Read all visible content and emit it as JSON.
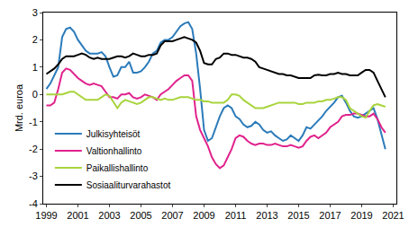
{
  "chart_data": {
    "type": "line",
    "y_label": "Mrd. euroa",
    "x": [
      1999.0,
      1999.25,
      1999.5,
      1999.75,
      2000.0,
      2000.25,
      2000.5,
      2000.75,
      2001.0,
      2001.25,
      2001.5,
      2001.75,
      2002.0,
      2002.25,
      2002.5,
      2002.75,
      2003.0,
      2003.25,
      2003.5,
      2003.75,
      2004.0,
      2004.25,
      2004.5,
      2004.75,
      2005.0,
      2005.25,
      2005.5,
      2005.75,
      2006.0,
      2006.25,
      2006.5,
      2006.75,
      2007.0,
      2007.25,
      2007.5,
      2007.75,
      2008.0,
      2008.25,
      2008.5,
      2008.75,
      2009.0,
      2009.25,
      2009.5,
      2009.75,
      2010.0,
      2010.25,
      2010.5,
      2010.75,
      2011.0,
      2011.25,
      2011.5,
      2011.75,
      2012.0,
      2012.25,
      2012.5,
      2012.75,
      2013.0,
      2013.25,
      2013.5,
      2013.75,
      2014.0,
      2014.25,
      2014.5,
      2014.75,
      2015.0,
      2015.25,
      2015.5,
      2015.75,
      2016.0,
      2016.25,
      2016.5,
      2016.75,
      2017.0,
      2017.25,
      2017.5,
      2017.75,
      2018.0,
      2018.25,
      2018.5,
      2018.75,
      2019.0,
      2019.25,
      2019.5,
      2019.75,
      2020.0,
      2020.25,
      2020.5
    ],
    "series": [
      {
        "name": "Julkisyhteisöt",
        "color": "#2b7bba",
        "values": [
          0.2,
          0.4,
          0.7,
          1.0,
          2.1,
          2.4,
          2.45,
          2.3,
          2.0,
          1.8,
          1.6,
          1.5,
          1.5,
          1.5,
          1.55,
          1.4,
          1.0,
          0.65,
          0.7,
          1.0,
          1.0,
          1.2,
          0.8,
          0.8,
          0.85,
          1.0,
          1.2,
          1.5,
          1.6,
          1.9,
          2.0,
          2.0,
          2.1,
          2.3,
          2.5,
          2.6,
          2.65,
          2.4,
          1.5,
          0.2,
          -1.3,
          -1.7,
          -1.6,
          -1.2,
          -0.8,
          -0.5,
          -0.4,
          -0.5,
          -0.8,
          -0.9,
          -1.1,
          -1.2,
          -1.15,
          -1.0,
          -1.1,
          -1.3,
          -1.4,
          -1.35,
          -1.5,
          -1.6,
          -1.7,
          -1.65,
          -1.5,
          -1.6,
          -1.7,
          -1.5,
          -1.2,
          -1.25,
          -1.1,
          -0.95,
          -0.8,
          -0.6,
          -0.45,
          -0.3,
          -0.1,
          -0.05,
          -0.3,
          -0.6,
          -0.8,
          -0.85,
          -0.8,
          -0.7,
          -0.6,
          -0.5,
          -0.9,
          -1.5,
          -2.0
        ]
      },
      {
        "name": "Valtionhallinto",
        "color": "#e0238c",
        "values": [
          -0.4,
          -0.4,
          -0.3,
          0.2,
          0.8,
          0.95,
          0.9,
          0.75,
          0.6,
          0.5,
          0.4,
          0.35,
          0.4,
          0.35,
          0.3,
          0.1,
          -0.1,
          -0.1,
          -0.15,
          0.0,
          0.0,
          0.05,
          -0.1,
          -0.15,
          -0.1,
          0.0,
          -0.05,
          -0.1,
          -0.2,
          0.0,
          0.1,
          0.2,
          0.35,
          0.5,
          0.6,
          0.7,
          0.7,
          0.5,
          -0.8,
          -1.3,
          -1.6,
          -1.9,
          -2.3,
          -2.55,
          -2.7,
          -2.6,
          -2.3,
          -2.0,
          -1.6,
          -1.5,
          -1.55,
          -1.7,
          -1.8,
          -1.85,
          -1.8,
          -1.8,
          -1.85,
          -1.85,
          -1.8,
          -1.85,
          -1.9,
          -1.9,
          -1.85,
          -1.9,
          -1.95,
          -1.9,
          -1.7,
          -1.55,
          -1.5,
          -1.6,
          -1.5,
          -1.4,
          -1.2,
          -1.1,
          -1.0,
          -0.8,
          -0.75,
          -0.75,
          -0.7,
          -0.7,
          -0.75,
          -0.8,
          -0.8,
          -0.7,
          -0.9,
          -1.2,
          -1.4
        ]
      },
      {
        "name": "Paikallishallinto",
        "color": "#a8d43c",
        "values": [
          0.0,
          0.0,
          0.0,
          0.0,
          0.0,
          0.05,
          0.1,
          0.1,
          0.0,
          -0.1,
          -0.2,
          -0.2,
          -0.2,
          -0.2,
          -0.1,
          0.0,
          -0.05,
          -0.3,
          -0.5,
          -0.3,
          -0.2,
          -0.25,
          -0.3,
          -0.35,
          -0.3,
          -0.2,
          -0.1,
          -0.1,
          -0.15,
          -0.2,
          -0.15,
          -0.2,
          -0.2,
          -0.15,
          -0.1,
          -0.1,
          -0.1,
          -0.15,
          -0.2,
          -0.2,
          -0.25,
          -0.25,
          -0.3,
          -0.3,
          -0.3,
          -0.3,
          -0.2,
          0.0,
          0.0,
          -0.05,
          -0.2,
          -0.3,
          -0.4,
          -0.5,
          -0.5,
          -0.5,
          -0.45,
          -0.4,
          -0.35,
          -0.3,
          -0.3,
          -0.3,
          -0.3,
          -0.3,
          -0.35,
          -0.35,
          -0.3,
          -0.3,
          -0.3,
          -0.25,
          -0.25,
          -0.2,
          -0.2,
          -0.15,
          -0.1,
          -0.1,
          -0.2,
          -0.5,
          -0.6,
          -0.7,
          -0.8,
          -0.85,
          -0.6,
          -0.4,
          -0.35,
          -0.4,
          -0.45
        ]
      },
      {
        "name": "Sosiaaliturvarahastot",
        "color": "#000000",
        "values": [
          0.75,
          0.85,
          0.95,
          1.1,
          1.3,
          1.4,
          1.4,
          1.4,
          1.45,
          1.5,
          1.45,
          1.35,
          1.3,
          1.35,
          1.3,
          1.3,
          1.3,
          1.35,
          1.4,
          1.4,
          1.35,
          1.4,
          1.5,
          1.45,
          1.4,
          1.4,
          1.45,
          1.45,
          1.5,
          1.8,
          1.95,
          1.95,
          1.95,
          2.0,
          2.05,
          2.1,
          2.05,
          2.0,
          1.9,
          1.6,
          1.15,
          1.1,
          1.1,
          1.3,
          1.35,
          1.5,
          1.5,
          1.45,
          1.45,
          1.4,
          1.35,
          1.35,
          1.3,
          1.2,
          1.0,
          0.95,
          0.9,
          0.85,
          0.8,
          0.75,
          0.75,
          0.7,
          0.7,
          0.65,
          0.6,
          0.6,
          0.6,
          0.6,
          0.7,
          0.72,
          0.7,
          0.7,
          0.75,
          0.75,
          0.8,
          0.75,
          0.75,
          0.7,
          0.7,
          0.7,
          0.8,
          0.9,
          0.9,
          0.8,
          0.5,
          0.2,
          -0.1
        ]
      }
    ],
    "xlim": [
      1998.8,
      2021.2
    ],
    "xticks": [
      1999,
      2001,
      2003,
      2005,
      2007,
      2009,
      2011,
      2013,
      2015,
      2017,
      2019,
      2021
    ],
    "ylim": [
      -4,
      3
    ],
    "yticks": [
      -4,
      -3,
      -2,
      -1,
      0,
      1,
      2,
      3
    ],
    "grid": false,
    "legend": "lower left"
  }
}
